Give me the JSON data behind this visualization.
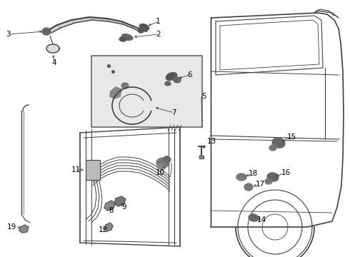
{
  "bg_color": "#ffffff",
  "line_color": "#404040",
  "label_color": "#000000",
  "fig_width": 4.9,
  "fig_height": 3.6,
  "dpi": 100,
  "parts_color": "#555555",
  "inset_bg": "#e8e8e8",
  "inset_border": "#666666"
}
